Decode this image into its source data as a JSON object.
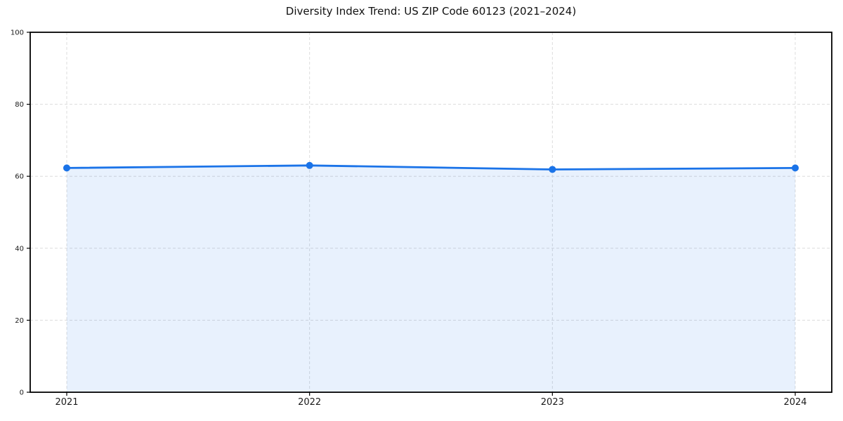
{
  "chart_data": {
    "type": "area",
    "title": "Diversity Index Trend: US ZIP Code 60123 (2021–2024)",
    "categories": [
      "2021",
      "2022",
      "2023",
      "2024"
    ],
    "values": [
      62.3,
      63.0,
      61.9,
      62.3
    ],
    "xlabel": "",
    "ylabel": "",
    "ylim": [
      0,
      100
    ],
    "yticks": [
      0,
      20,
      40,
      60,
      80,
      100
    ],
    "grid": {
      "visible": true,
      "style": "dashed",
      "axes": "both"
    },
    "legend": {
      "visible": false
    },
    "marker": "circle",
    "colors": {
      "line": "#1a73e8",
      "marker": "#1a73e8",
      "fill": "rgba(26,115,232,0.10)",
      "grid": "#dcdcdc",
      "axis": "#000000",
      "tick_text": "#1a1a1a",
      "title_text": "#111111",
      "background": "#ffffff"
    }
  }
}
